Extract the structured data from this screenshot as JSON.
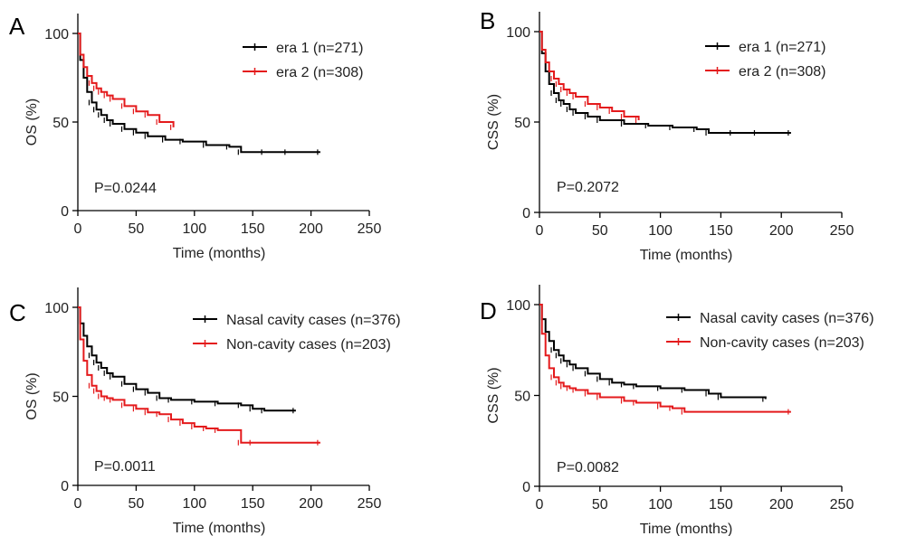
{
  "chart_data": [
    {
      "panel_label": "A",
      "type": "line",
      "xlabel": "Time (months)",
      "ylabel": "OS (%)",
      "xlim": [
        0,
        250
      ],
      "ylim": [
        0,
        100
      ],
      "xticks": [
        0,
        50,
        100,
        150,
        200,
        250
      ],
      "yticks": [
        0,
        50,
        100
      ],
      "grid": false,
      "legend_position": "top-right",
      "pvalue": "P=0.0244",
      "series": [
        {
          "name": "era 1 (n=271)",
          "color": "#000000",
          "x": [
            0,
            2,
            5,
            8,
            12,
            16,
            20,
            25,
            30,
            40,
            50,
            60,
            75,
            90,
            110,
            130,
            140,
            160,
            180,
            208
          ],
          "y": [
            100,
            85,
            75,
            67,
            61,
            57,
            54,
            51,
            49,
            46,
            44,
            42,
            40,
            39,
            37,
            36,
            33,
            33,
            33,
            33
          ]
        },
        {
          "name": "era 2 (n=308)",
          "color": "#e41a1c",
          "x": [
            0,
            2,
            5,
            8,
            12,
            16,
            20,
            25,
            30,
            40,
            50,
            60,
            70,
            82
          ],
          "y": [
            100,
            88,
            81,
            76,
            72,
            69,
            67,
            65,
            63,
            59,
            56,
            54,
            50,
            47
          ]
        }
      ]
    },
    {
      "panel_label": "B",
      "type": "line",
      "xlabel": "Time (months)",
      "ylabel": "CSS (%)",
      "xlim": [
        0,
        250
      ],
      "ylim": [
        0,
        100
      ],
      "xticks": [
        0,
        50,
        100,
        150,
        200,
        250
      ],
      "yticks": [
        0,
        50,
        100
      ],
      "grid": false,
      "legend_position": "top-right",
      "pvalue": "P=0.2072",
      "series": [
        {
          "name": "era 1 (n=271)",
          "color": "#000000",
          "x": [
            0,
            2,
            5,
            8,
            12,
            16,
            20,
            25,
            30,
            40,
            50,
            70,
            90,
            110,
            130,
            140,
            160,
            180,
            208
          ],
          "y": [
            100,
            88,
            78,
            71,
            66,
            62,
            60,
            57,
            55,
            53,
            51,
            49,
            48,
            47,
            46,
            44,
            44,
            44,
            44
          ]
        },
        {
          "name": "era 2 (n=308)",
          "color": "#e41a1c",
          "x": [
            0,
            2,
            5,
            8,
            12,
            16,
            20,
            25,
            30,
            40,
            50,
            60,
            70,
            82
          ],
          "y": [
            100,
            90,
            83,
            78,
            74,
            71,
            68,
            66,
            64,
            60,
            58,
            56,
            53,
            51
          ]
        }
      ]
    },
    {
      "panel_label": "C",
      "type": "line",
      "xlabel": "Time (months)",
      "ylabel": "OS (%)",
      "xlim": [
        0,
        250
      ],
      "ylim": [
        0,
        100
      ],
      "xticks": [
        0,
        50,
        100,
        150,
        200,
        250
      ],
      "yticks": [
        0,
        50,
        100
      ],
      "grid": false,
      "legend_position": "top-right",
      "pvalue": "P=0.0011",
      "series": [
        {
          "name": "Nasal cavity cases (n=376)",
          "color": "#000000",
          "x": [
            0,
            2,
            5,
            8,
            12,
            16,
            20,
            25,
            30,
            40,
            50,
            60,
            70,
            80,
            100,
            120,
            140,
            150,
            160,
            187
          ],
          "y": [
            100,
            91,
            84,
            78,
            73,
            69,
            66,
            63,
            61,
            57,
            54,
            52,
            49,
            48,
            47,
            46,
            45,
            43,
            42,
            42
          ]
        },
        {
          "name": "Non-cavity cases (n=203)",
          "color": "#e41a1c",
          "x": [
            0,
            2,
            5,
            8,
            12,
            16,
            20,
            25,
            30,
            40,
            50,
            60,
            70,
            80,
            90,
            100,
            110,
            120,
            140,
            150,
            208
          ],
          "y": [
            100,
            82,
            70,
            62,
            56,
            53,
            50,
            49,
            48,
            45,
            43,
            41,
            40,
            37,
            35,
            33,
            32,
            31,
            24,
            24,
            24
          ]
        }
      ]
    },
    {
      "panel_label": "D",
      "type": "line",
      "xlabel": "Time (months)",
      "ylabel": "CSS (%)",
      "xlim": [
        0,
        250
      ],
      "ylim": [
        0,
        100
      ],
      "xticks": [
        0,
        50,
        100,
        150,
        200,
        250
      ],
      "yticks": [
        0,
        50,
        100
      ],
      "grid": false,
      "legend_position": "top-right",
      "pvalue": "P=0.0082",
      "series": [
        {
          "name": "Nasal cavity cases (n=376)",
          "color": "#000000",
          "x": [
            0,
            2,
            5,
            8,
            12,
            16,
            20,
            25,
            30,
            40,
            50,
            60,
            70,
            80,
            100,
            120,
            140,
            150,
            187
          ],
          "y": [
            100,
            92,
            85,
            80,
            75,
            72,
            69,
            67,
            65,
            62,
            59,
            57,
            56,
            55,
            54,
            53,
            51,
            49,
            48
          ]
        },
        {
          "name": "Non-cavity cases (n=203)",
          "color": "#e41a1c",
          "x": [
            0,
            2,
            5,
            8,
            12,
            16,
            20,
            25,
            30,
            40,
            50,
            70,
            80,
            100,
            110,
            120,
            208
          ],
          "y": [
            100,
            84,
            72,
            65,
            60,
            57,
            55,
            54,
            53,
            51,
            49,
            47,
            46,
            44,
            43,
            41,
            41
          ]
        }
      ]
    }
  ]
}
